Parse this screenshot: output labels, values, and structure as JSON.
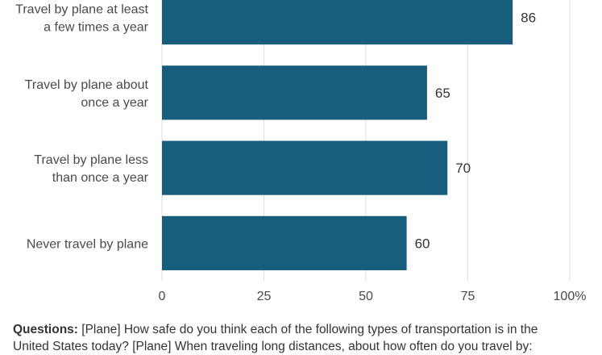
{
  "chart_data": {
    "type": "bar",
    "orientation": "horizontal",
    "categories": [
      [
        "Travel by plane at least",
        "a few times a year"
      ],
      [
        "Travel by plane about",
        "once a year"
      ],
      [
        "Travel by plane less",
        "than once a year"
      ],
      [
        "Never travel by plane"
      ]
    ],
    "values": [
      86,
      65,
      70,
      60
    ],
    "data_labels": [
      "86",
      "65",
      "70",
      "60"
    ],
    "xlim": [
      0,
      100
    ],
    "x_ticks": [
      0,
      25,
      50,
      75,
      100
    ],
    "x_tick_labels": [
      "0",
      "25",
      "50",
      "75",
      "100%"
    ],
    "grid": true,
    "bar_color": "#175e7e"
  },
  "footnote": {
    "label": "Questions:",
    "line1": " [Plane] How safe do you think each of the following types of transportation is in the",
    "line2": "United States today? [Plane] When traveling long distances, about how often do you travel by:"
  }
}
